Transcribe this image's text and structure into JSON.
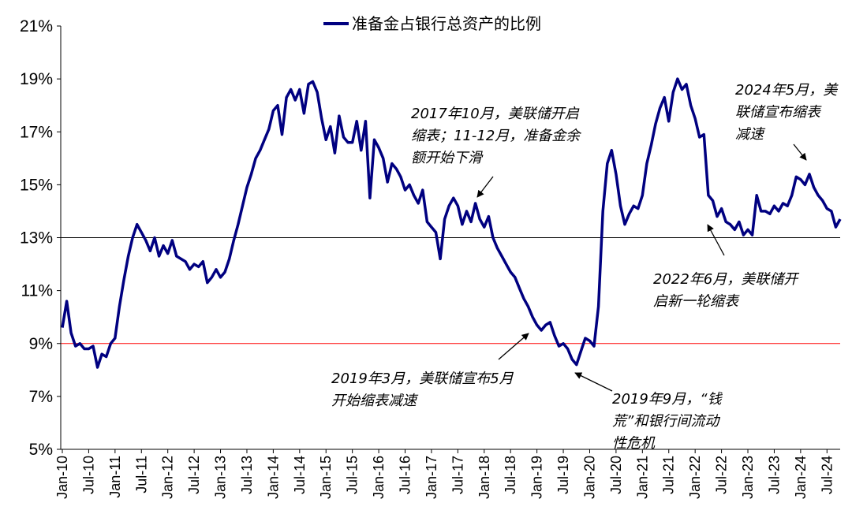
{
  "chart_data": {
    "type": "line",
    "title": "",
    "xlabel": "",
    "ylabel": "",
    "y_axis": {
      "min": 5,
      "max": 21,
      "step": 2,
      "tick_labels": [
        "5%",
        "7%",
        "9%",
        "11%",
        "13%",
        "15%",
        "17%",
        "19%",
        "21%"
      ]
    },
    "x_axis": {
      "start": "2010-01",
      "end": "2024-10",
      "tick_labels": [
        "Jan-10",
        "Jul-10",
        "Jan-11",
        "Jul-11",
        "Jan-12",
        "Jul-12",
        "Jan-13",
        "Jul-13",
        "Jan-14",
        "Jul-14",
        "Jan-15",
        "Jul-15",
        "Jan-16",
        "Jul-16",
        "Jan-17",
        "Jul-17",
        "Jan-18",
        "Jul-18",
        "Jan-19",
        "Jul-19",
        "Jan-20",
        "Jul-20",
        "Jan-21",
        "Jul-21",
        "Jan-22",
        "Jul-22",
        "Jan-23",
        "Jul-23",
        "Jan-24",
        "Jul-24"
      ]
    },
    "legend": {
      "position": "top-center"
    },
    "grid": false,
    "reference_lines": [
      {
        "y": 13,
        "color": "#000000"
      },
      {
        "y": 9,
        "color": "#ff0000"
      }
    ],
    "series": [
      {
        "name": "准备金占银行总资产的比例",
        "color": "#000080",
        "points": [
          [
            "2010-01",
            9.6
          ],
          [
            "2010-02",
            10.6
          ],
          [
            "2010-03",
            9.4
          ],
          [
            "2010-04",
            8.9
          ],
          [
            "2010-05",
            9.0
          ],
          [
            "2010-06",
            8.8
          ],
          [
            "2010-07",
            8.8
          ],
          [
            "2010-08",
            8.9
          ],
          [
            "2010-09",
            8.1
          ],
          [
            "2010-10",
            8.6
          ],
          [
            "2010-11",
            8.5
          ],
          [
            "2010-12",
            9.0
          ],
          [
            "2011-01",
            9.2
          ],
          [
            "2011-02",
            10.4
          ],
          [
            "2011-03",
            11.4
          ],
          [
            "2011-04",
            12.3
          ],
          [
            "2011-05",
            13.0
          ],
          [
            "2011-06",
            13.5
          ],
          [
            "2011-07",
            13.2
          ],
          [
            "2011-08",
            12.9
          ],
          [
            "2011-09",
            12.5
          ],
          [
            "2011-10",
            13.0
          ],
          [
            "2011-11",
            12.3
          ],
          [
            "2011-12",
            12.7
          ],
          [
            "2012-01",
            12.4
          ],
          [
            "2012-02",
            12.9
          ],
          [
            "2012-03",
            12.3
          ],
          [
            "2012-04",
            12.2
          ],
          [
            "2012-05",
            12.1
          ],
          [
            "2012-06",
            11.8
          ],
          [
            "2012-07",
            12.0
          ],
          [
            "2012-08",
            11.9
          ],
          [
            "2012-09",
            12.1
          ],
          [
            "2012-10",
            11.3
          ],
          [
            "2012-11",
            11.5
          ],
          [
            "2012-12",
            11.8
          ],
          [
            "2013-01",
            11.5
          ],
          [
            "2013-02",
            11.7
          ],
          [
            "2013-03",
            12.2
          ],
          [
            "2013-04",
            12.9
          ],
          [
            "2013-05",
            13.5
          ],
          [
            "2013-06",
            14.2
          ],
          [
            "2013-07",
            14.9
          ],
          [
            "2013-08",
            15.4
          ],
          [
            "2013-09",
            16.0
          ],
          [
            "2013-10",
            16.3
          ],
          [
            "2013-11",
            16.7
          ],
          [
            "2013-12",
            17.1
          ],
          [
            "2014-01",
            17.8
          ],
          [
            "2014-02",
            18.0
          ],
          [
            "2014-03",
            16.9
          ],
          [
            "2014-04",
            18.3
          ],
          [
            "2014-05",
            18.6
          ],
          [
            "2014-06",
            18.2
          ],
          [
            "2014-07",
            18.6
          ],
          [
            "2014-08",
            17.7
          ],
          [
            "2014-09",
            18.8
          ],
          [
            "2014-10",
            18.9
          ],
          [
            "2014-11",
            18.5
          ],
          [
            "2014-12",
            17.5
          ],
          [
            "2015-01",
            16.7
          ],
          [
            "2015-02",
            17.2
          ],
          [
            "2015-03",
            16.2
          ],
          [
            "2015-04",
            17.6
          ],
          [
            "2015-05",
            16.8
          ],
          [
            "2015-06",
            16.6
          ],
          [
            "2015-07",
            16.6
          ],
          [
            "2015-08",
            17.4
          ],
          [
            "2015-09",
            16.3
          ],
          [
            "2015-10",
            17.4
          ],
          [
            "2015-11",
            14.5
          ],
          [
            "2015-12",
            16.7
          ],
          [
            "2016-01",
            16.4
          ],
          [
            "2016-02",
            16.0
          ],
          [
            "2016-03",
            15.1
          ],
          [
            "2016-04",
            15.8
          ],
          [
            "2016-05",
            15.6
          ],
          [
            "2016-06",
            15.3
          ],
          [
            "2016-07",
            14.8
          ],
          [
            "2016-08",
            15.0
          ],
          [
            "2016-09",
            14.6
          ],
          [
            "2016-10",
            14.3
          ],
          [
            "2016-11",
            14.8
          ],
          [
            "2016-12",
            13.6
          ],
          [
            "2017-01",
            13.4
          ],
          [
            "2017-02",
            13.2
          ],
          [
            "2017-03",
            12.2
          ],
          [
            "2017-04",
            13.7
          ],
          [
            "2017-05",
            14.2
          ],
          [
            "2017-06",
            14.5
          ],
          [
            "2017-07",
            14.2
          ],
          [
            "2017-08",
            13.5
          ],
          [
            "2017-09",
            14.0
          ],
          [
            "2017-10",
            13.6
          ],
          [
            "2017-11",
            14.3
          ],
          [
            "2017-12",
            13.7
          ],
          [
            "2018-01",
            13.4
          ],
          [
            "2018-02",
            13.8
          ],
          [
            "2018-03",
            13.0
          ],
          [
            "2018-04",
            12.6
          ],
          [
            "2018-05",
            12.3
          ],
          [
            "2018-06",
            12.0
          ],
          [
            "2018-07",
            11.7
          ],
          [
            "2018-08",
            11.5
          ],
          [
            "2018-09",
            11.1
          ],
          [
            "2018-10",
            10.7
          ],
          [
            "2018-11",
            10.4
          ],
          [
            "2018-12",
            10.0
          ],
          [
            "2019-01",
            9.7
          ],
          [
            "2019-02",
            9.5
          ],
          [
            "2019-03",
            9.7
          ],
          [
            "2019-04",
            9.8
          ],
          [
            "2019-05",
            9.3
          ],
          [
            "2019-06",
            8.9
          ],
          [
            "2019-07",
            9.0
          ],
          [
            "2019-08",
            8.8
          ],
          [
            "2019-09",
            8.4
          ],
          [
            "2019-10",
            8.2
          ],
          [
            "2019-11",
            8.7
          ],
          [
            "2019-12",
            9.2
          ],
          [
            "2020-01",
            9.1
          ],
          [
            "2020-02",
            8.9
          ],
          [
            "2020-03",
            10.4
          ],
          [
            "2020-04",
            14.0
          ],
          [
            "2020-05",
            15.8
          ],
          [
            "2020-06",
            16.3
          ],
          [
            "2020-07",
            15.4
          ],
          [
            "2020-08",
            14.2
          ],
          [
            "2020-09",
            13.5
          ],
          [
            "2020-10",
            13.9
          ],
          [
            "2020-11",
            14.2
          ],
          [
            "2020-12",
            14.1
          ],
          [
            "2021-01",
            14.6
          ],
          [
            "2021-02",
            15.8
          ],
          [
            "2021-03",
            16.5
          ],
          [
            "2021-04",
            17.3
          ],
          [
            "2021-05",
            17.9
          ],
          [
            "2021-06",
            18.3
          ],
          [
            "2021-07",
            17.4
          ],
          [
            "2021-08",
            18.5
          ],
          [
            "2021-09",
            19.0
          ],
          [
            "2021-10",
            18.6
          ],
          [
            "2021-11",
            18.8
          ],
          [
            "2021-12",
            18.0
          ],
          [
            "2022-01",
            17.5
          ],
          [
            "2022-02",
            16.8
          ],
          [
            "2022-03",
            16.9
          ],
          [
            "2022-04",
            14.6
          ],
          [
            "2022-05",
            14.4
          ],
          [
            "2022-06",
            13.8
          ],
          [
            "2022-07",
            14.1
          ],
          [
            "2022-08",
            13.6
          ],
          [
            "2022-09",
            13.5
          ],
          [
            "2022-10",
            13.3
          ],
          [
            "2022-11",
            13.6
          ],
          [
            "2022-12",
            13.1
          ],
          [
            "2023-01",
            13.3
          ],
          [
            "2023-02",
            13.1
          ],
          [
            "2023-03",
            14.6
          ],
          [
            "2023-04",
            14.0
          ],
          [
            "2023-05",
            14.0
          ],
          [
            "2023-06",
            13.9
          ],
          [
            "2023-07",
            14.2
          ],
          [
            "2023-08",
            14.0
          ],
          [
            "2023-09",
            14.3
          ],
          [
            "2023-10",
            14.2
          ],
          [
            "2023-11",
            14.6
          ],
          [
            "2023-12",
            15.3
          ],
          [
            "2024-01",
            15.2
          ],
          [
            "2024-02",
            15.0
          ],
          [
            "2024-03",
            15.4
          ],
          [
            "2024-04",
            14.9
          ],
          [
            "2024-05",
            14.6
          ],
          [
            "2024-06",
            14.4
          ],
          [
            "2024-07",
            14.1
          ],
          [
            "2024-08",
            14.0
          ],
          [
            "2024-09",
            13.4
          ],
          [
            "2024-10",
            13.7
          ]
        ]
      }
    ],
    "annotations": [
      {
        "lines": [
          "2017年10月，美联储开启",
          "缩表；11-12月，准备金余",
          "额开始下滑"
        ],
        "date": "2017-10",
        "value": 14.3
      },
      {
        "lines": [
          "2024年5月，美",
          "联储宣布缩表",
          "减速"
        ],
        "date": "2024-05",
        "value": 15.5
      },
      {
        "lines": [
          "2022年6月，美联储开",
          "启新一轮缩表"
        ],
        "date": "2022-06",
        "value": 13.6
      },
      {
        "lines": [
          "2019年3月，美联储宣布5月",
          "开始缩表减速"
        ],
        "date": "2019-03",
        "value": 9.7
      },
      {
        "lines": [
          "2019年9月，“钱",
          "荒”和银行间流动",
          "性危机"
        ],
        "date": "2019-09",
        "value": 8.0
      }
    ]
  }
}
